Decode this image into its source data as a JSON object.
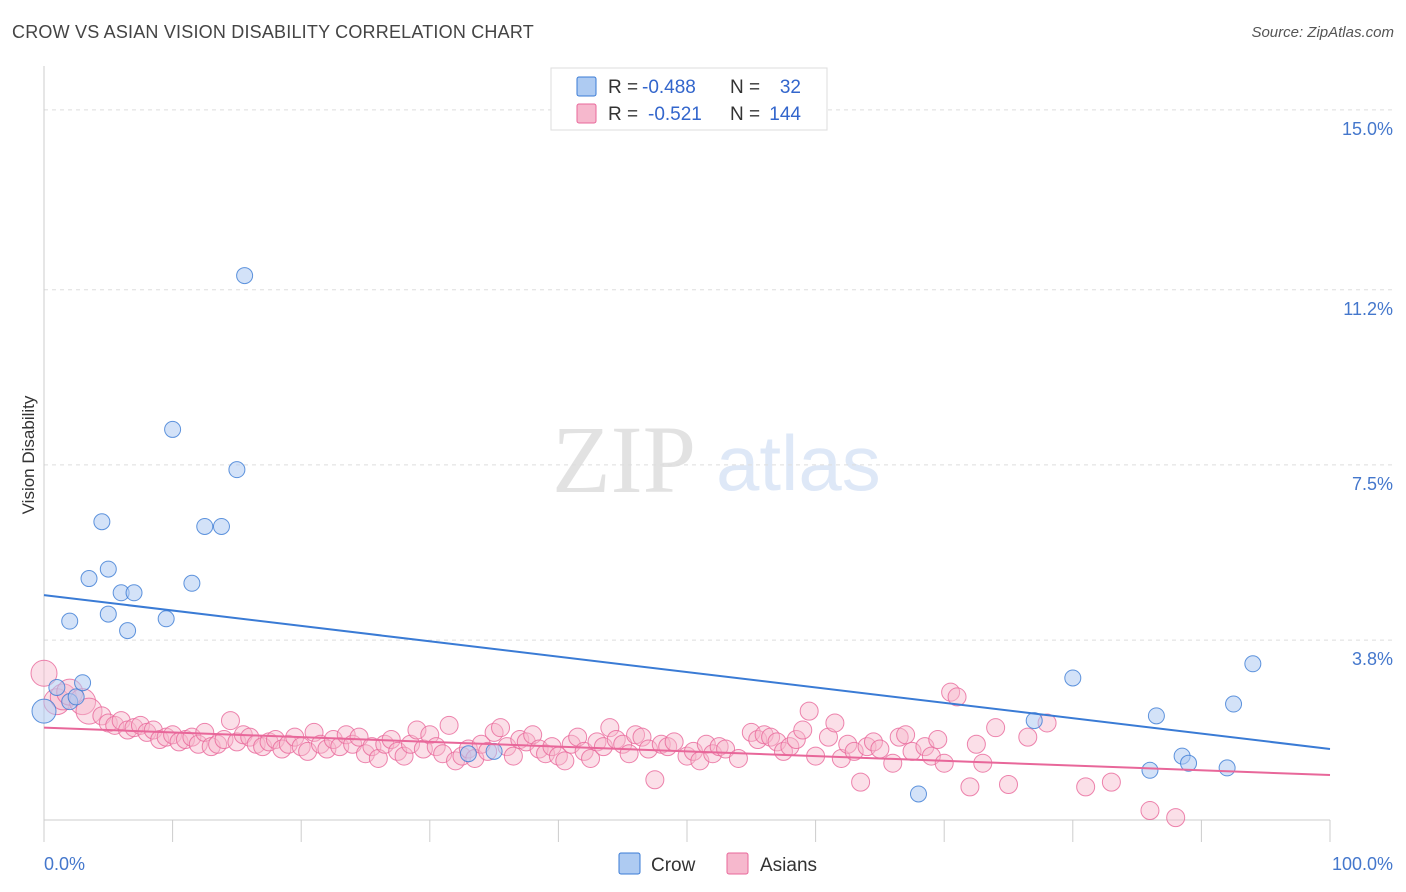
{
  "header": {
    "title": "CROW VS ASIAN VISION DISABILITY CORRELATION CHART",
    "source": "Source: ZipAtlas.com"
  },
  "watermark": {
    "zip": "ZIP",
    "atlas": "atlas"
  },
  "colors": {
    "crow": "#3a7bd5",
    "crow_fill": "#aecbf2",
    "asians": "#e8679a",
    "asians_fill": "#f6b8cd",
    "grid": "#dddddd",
    "axis_text": "#4477cc"
  },
  "legend": {
    "rows": [
      {
        "r_label": "R =",
        "r_value": "-0.488",
        "n_label": "N =",
        "n_value": "32"
      },
      {
        "r_label": "R =",
        "r_value": "-0.521",
        "n_label": "N =",
        "n_value": "144"
      }
    ]
  },
  "chart_data": {
    "type": "scatter",
    "title": "CROW VS ASIAN VISION DISABILITY CORRELATION CHART",
    "xlabel": "",
    "ylabel": "Vision Disability",
    "xlim": [
      0,
      100
    ],
    "ylim": [
      0,
      15.8
    ],
    "x_tick_labels": [
      "0.0%",
      "100.0%"
    ],
    "y_ticks": [
      3.8,
      7.5,
      11.2,
      15.0
    ],
    "y_tick_labels": [
      "3.8%",
      "7.5%",
      "11.2%",
      "15.0%"
    ],
    "grid": true,
    "legend_position": "top-center",
    "series": [
      {
        "name": "Crow",
        "color": "#3a7bd5",
        "trend": {
          "x": [
            0,
            100
          ],
          "y": [
            4.75,
            1.5
          ]
        },
        "points": [
          [
            0,
            2.3
          ],
          [
            1,
            2.8
          ],
          [
            2,
            2.5
          ],
          [
            2.5,
            2.6
          ],
          [
            3,
            2.9
          ],
          [
            2,
            4.2
          ],
          [
            3.5,
            5.1
          ],
          [
            4.5,
            6.3
          ],
          [
            5,
            5.3
          ],
          [
            5,
            4.35
          ],
          [
            6,
            4.8
          ],
          [
            6.5,
            4.0
          ],
          [
            7,
            4.8
          ],
          [
            9.5,
            4.25
          ],
          [
            10,
            8.25
          ],
          [
            11.5,
            5.0
          ],
          [
            12.5,
            6.2
          ],
          [
            13.8,
            6.2
          ],
          [
            15,
            7.4
          ],
          [
            15.6,
            11.5
          ],
          [
            33,
            1.4
          ],
          [
            35,
            1.45
          ],
          [
            68,
            0.55
          ],
          [
            80,
            3.0
          ],
          [
            77,
            2.1
          ],
          [
            86,
            1.05
          ],
          [
            86.5,
            2.2
          ],
          [
            88.5,
            1.35
          ],
          [
            89,
            1.2
          ],
          [
            92,
            1.1
          ],
          [
            92.5,
            2.45
          ],
          [
            94,
            3.3
          ]
        ]
      },
      {
        "name": "Asians",
        "color": "#e8679a",
        "trend": {
          "x": [
            0,
            100
          ],
          "y": [
            1.95,
            0.95
          ]
        },
        "points": [
          [
            0,
            3.1
          ],
          [
            1,
            2.5
          ],
          [
            1.5,
            2.6
          ],
          [
            2,
            2.7
          ],
          [
            3,
            2.5
          ],
          [
            3.5,
            2.3
          ],
          [
            4.5,
            2.2
          ],
          [
            5,
            2.05
          ],
          [
            5.5,
            2.0
          ],
          [
            6,
            2.1
          ],
          [
            6.5,
            1.9
          ],
          [
            7,
            1.95
          ],
          [
            7.5,
            2.0
          ],
          [
            8,
            1.85
          ],
          [
            8.5,
            1.9
          ],
          [
            9,
            1.7
          ],
          [
            9.5,
            1.75
          ],
          [
            10,
            1.8
          ],
          [
            10.5,
            1.65
          ],
          [
            11,
            1.7
          ],
          [
            11.5,
            1.75
          ],
          [
            12,
            1.6
          ],
          [
            12.5,
            1.85
          ],
          [
            13,
            1.55
          ],
          [
            13.5,
            1.6
          ],
          [
            14,
            1.7
          ],
          [
            14.5,
            2.1
          ],
          [
            15,
            1.65
          ],
          [
            15.5,
            1.8
          ],
          [
            16,
            1.75
          ],
          [
            16.5,
            1.6
          ],
          [
            17,
            1.55
          ],
          [
            17.5,
            1.65
          ],
          [
            18,
            1.7
          ],
          [
            18.5,
            1.5
          ],
          [
            19,
            1.6
          ],
          [
            19.5,
            1.75
          ],
          [
            20,
            1.55
          ],
          [
            20.5,
            1.45
          ],
          [
            21,
            1.85
          ],
          [
            21.5,
            1.6
          ],
          [
            22,
            1.5
          ],
          [
            22.5,
            1.7
          ],
          [
            23,
            1.55
          ],
          [
            23.5,
            1.8
          ],
          [
            24,
            1.6
          ],
          [
            24.5,
            1.75
          ],
          [
            25,
            1.4
          ],
          [
            25.5,
            1.55
          ],
          [
            26,
            1.3
          ],
          [
            26.5,
            1.6
          ],
          [
            27,
            1.7
          ],
          [
            27.5,
            1.45
          ],
          [
            28,
            1.35
          ],
          [
            28.5,
            1.6
          ],
          [
            29,
            1.9
          ],
          [
            29.5,
            1.5
          ],
          [
            30,
            1.8
          ],
          [
            30.5,
            1.55
          ],
          [
            31,
            1.4
          ],
          [
            31.5,
            2.0
          ],
          [
            32,
            1.25
          ],
          [
            32.5,
            1.35
          ],
          [
            33,
            1.5
          ],
          [
            33.5,
            1.3
          ],
          [
            34,
            1.6
          ],
          [
            34.5,
            1.45
          ],
          [
            35,
            1.85
          ],
          [
            35.5,
            1.95
          ],
          [
            36,
            1.55
          ],
          [
            36.5,
            1.35
          ],
          [
            37,
            1.7
          ],
          [
            37.5,
            1.65
          ],
          [
            38,
            1.8
          ],
          [
            38.5,
            1.5
          ],
          [
            39,
            1.4
          ],
          [
            39.5,
            1.55
          ],
          [
            40,
            1.35
          ],
          [
            40.5,
            1.25
          ],
          [
            41,
            1.6
          ],
          [
            41.5,
            1.75
          ],
          [
            42,
            1.45
          ],
          [
            42.5,
            1.3
          ],
          [
            43,
            1.65
          ],
          [
            43.5,
            1.55
          ],
          [
            44,
            1.95
          ],
          [
            44.5,
            1.7
          ],
          [
            45,
            1.6
          ],
          [
            45.5,
            1.4
          ],
          [
            46,
            1.8
          ],
          [
            46.5,
            1.75
          ],
          [
            47,
            1.5
          ],
          [
            47.5,
            0.85
          ],
          [
            48,
            1.6
          ],
          [
            48.5,
            1.55
          ],
          [
            49,
            1.65
          ],
          [
            50,
            1.35
          ],
          [
            50.5,
            1.45
          ],
          [
            51,
            1.25
          ],
          [
            51.5,
            1.6
          ],
          [
            52,
            1.4
          ],
          [
            52.5,
            1.55
          ],
          [
            53,
            1.5
          ],
          [
            54,
            1.3
          ],
          [
            55,
            1.85
          ],
          [
            55.5,
            1.7
          ],
          [
            56,
            1.8
          ],
          [
            56.5,
            1.75
          ],
          [
            57,
            1.65
          ],
          [
            57.5,
            1.45
          ],
          [
            58,
            1.55
          ],
          [
            58.5,
            1.7
          ],
          [
            59,
            1.9
          ],
          [
            59.5,
            2.3
          ],
          [
            60,
            1.35
          ],
          [
            61,
            1.75
          ],
          [
            61.5,
            2.05
          ],
          [
            62,
            1.3
          ],
          [
            62.5,
            1.6
          ],
          [
            63,
            1.45
          ],
          [
            63.5,
            0.8
          ],
          [
            64,
            1.55
          ],
          [
            64.5,
            1.65
          ],
          [
            65,
            1.5
          ],
          [
            66,
            1.2
          ],
          [
            66.5,
            1.75
          ],
          [
            67,
            1.8
          ],
          [
            67.5,
            1.45
          ],
          [
            68.5,
            1.55
          ],
          [
            69,
            1.35
          ],
          [
            69.5,
            1.7
          ],
          [
            70,
            1.2
          ],
          [
            70.5,
            2.7
          ],
          [
            71,
            2.6
          ],
          [
            72,
            0.7
          ],
          [
            72.5,
            1.6
          ],
          [
            73,
            1.2
          ],
          [
            74,
            1.95
          ],
          [
            75,
            0.75
          ],
          [
            76.5,
            1.75
          ],
          [
            78,
            2.05
          ],
          [
            81,
            0.7
          ],
          [
            83,
            0.8
          ],
          [
            86,
            0.2
          ],
          [
            88,
            0.05
          ]
        ]
      }
    ]
  },
  "bottom_legend": [
    {
      "label": "Crow"
    },
    {
      "label": "Asians"
    }
  ]
}
